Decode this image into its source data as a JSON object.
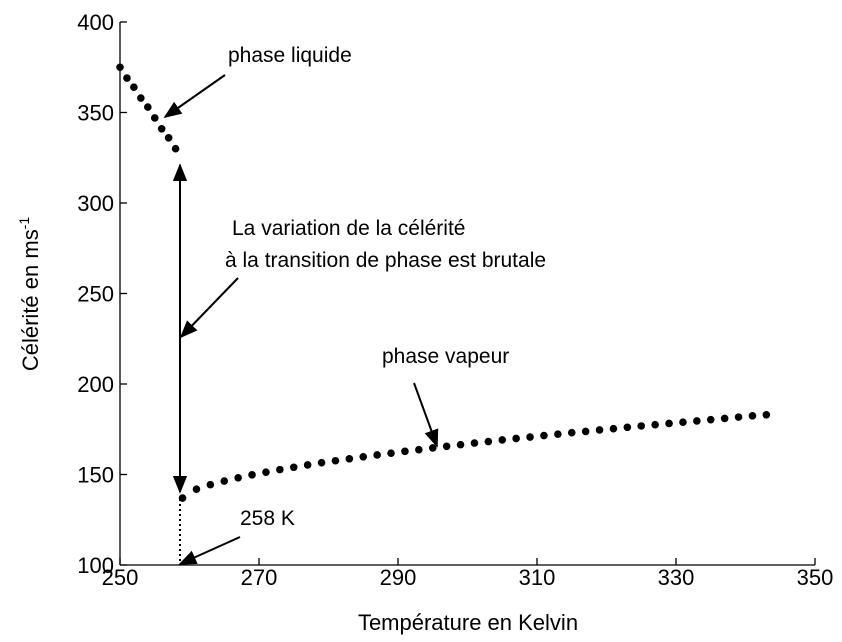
{
  "chart_data": {
    "type": "scatter",
    "xlabel": "Température en Kelvin",
    "ylabel": "Célérité en ms",
    "ylabel_exponent": "-1",
    "annotations": [
      "phase liquide",
      "La variation de la célérité",
      "à la transition de phase est brutale",
      "phase vapeur",
      "258 K"
    ],
    "xlim": [
      250,
      350
    ],
    "xticks": [
      250,
      270,
      290,
      310,
      330,
      350
    ],
    "ylim": [
      100,
      400
    ],
    "yticks": [
      100,
      150,
      200,
      250,
      300,
      350,
      400
    ],
    "color": "#000000",
    "series": [
      {
        "x": [
          250,
          251,
          252,
          253,
          254,
          255,
          256,
          257,
          258
        ],
        "values": [
          375,
          369,
          364,
          358,
          353,
          347,
          341,
          336,
          330
        ]
      },
      {
        "x": [
          259,
          261,
          263,
          265,
          267,
          269,
          271,
          273,
          275,
          277,
          279,
          281,
          283,
          285,
          287,
          289,
          291,
          293,
          295,
          297,
          299,
          301,
          303,
          305,
          307,
          309,
          311,
          313,
          315,
          317,
          319,
          321,
          323,
          325,
          327,
          329,
          331,
          333,
          335,
          337,
          339,
          341,
          343
        ],
        "values": [
          137,
          141.9,
          144.4,
          146.4,
          148.2,
          149.8,
          151.3,
          152.7,
          154.0,
          155.3,
          156.5,
          157.6,
          158.7,
          159.8,
          160.8,
          161.8,
          162.8,
          163.7,
          164.7,
          165.6,
          166.5,
          167.4,
          168.2,
          169.1,
          169.9,
          170.7,
          171.5,
          172.3,
          173.1,
          173.8,
          174.6,
          175.3,
          176.1,
          176.8,
          177.5,
          178.2,
          178.9,
          179.6,
          180.3,
          181.0,
          181.7,
          182.4,
          183
        ]
      }
    ]
  }
}
